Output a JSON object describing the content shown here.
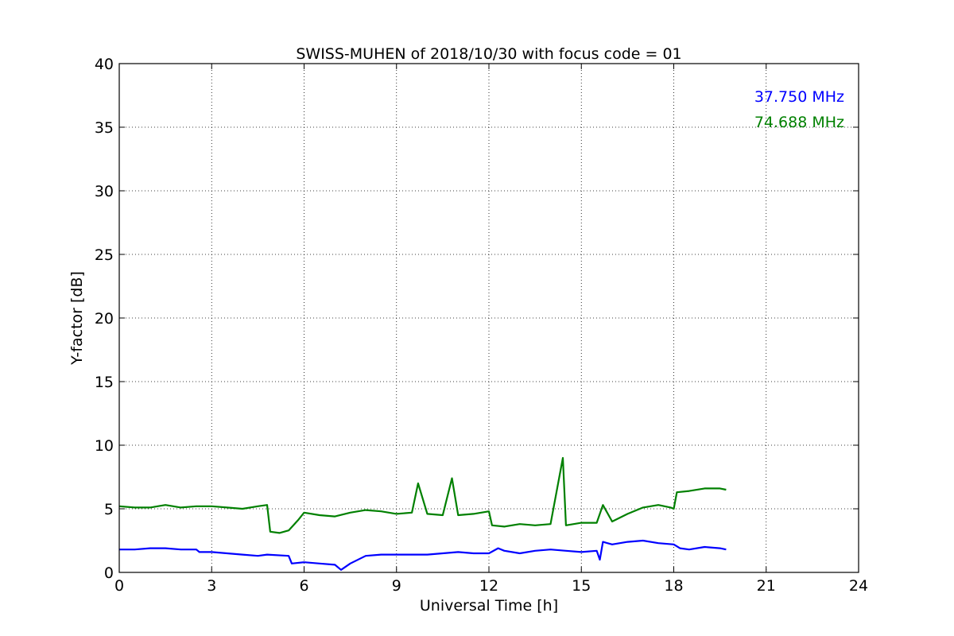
{
  "chart_data": {
    "type": "line",
    "title": "SWISS-MUHEN of 2018/10/30 with focus code = 01",
    "xlabel": "Universal Time [h]",
    "ylabel": "Y-factor [dB]",
    "xlim": [
      0,
      24
    ],
    "ylim": [
      0,
      40
    ],
    "xticks": [
      0,
      3,
      6,
      9,
      12,
      15,
      18,
      21,
      24
    ],
    "xtick_labels": [
      "0",
      "3",
      "6",
      "9",
      "12",
      "15",
      "18",
      "21",
      "24"
    ],
    "yticks": [
      0,
      5,
      10,
      15,
      20,
      25,
      30,
      35,
      40
    ],
    "ytick_labels": [
      "0",
      "5",
      "10",
      "15",
      "20",
      "25",
      "30",
      "35",
      "40"
    ],
    "grid": true,
    "legend_position": "top-right",
    "series": [
      {
        "name": "37.750 MHz",
        "color": "#0000ff",
        "x": [
          0,
          0.5,
          1,
          1.5,
          2,
          2.5,
          2.6,
          3,
          3.5,
          4,
          4.5,
          4.8,
          5.5,
          5.6,
          6,
          6.5,
          7,
          7.2,
          7.5,
          8,
          8.5,
          9,
          9.5,
          10,
          10.5,
          11,
          11.5,
          12,
          12.3,
          12.5,
          13,
          13.5,
          14,
          14.5,
          15,
          15.5,
          15.6,
          15.7,
          16,
          16.5,
          17,
          17.5,
          18,
          18.2,
          18.5,
          19,
          19.5,
          19.7
        ],
        "values": [
          1.8,
          1.8,
          1.9,
          1.9,
          1.8,
          1.8,
          1.6,
          1.6,
          1.5,
          1.4,
          1.3,
          1.4,
          1.3,
          0.7,
          0.8,
          0.7,
          0.6,
          0.2,
          0.7,
          1.3,
          1.4,
          1.4,
          1.4,
          1.4,
          1.5,
          1.6,
          1.5,
          1.5,
          1.9,
          1.7,
          1.5,
          1.7,
          1.8,
          1.7,
          1.6,
          1.7,
          1.0,
          2.4,
          2.2,
          2.4,
          2.5,
          2.3,
          2.2,
          1.9,
          1.8,
          2.0,
          1.9,
          1.8
        ]
      },
      {
        "name": "74.688 MHz",
        "color": "#008000",
        "x": [
          0,
          0.5,
          1,
          1.5,
          2,
          2.5,
          3,
          3.5,
          4,
          4.5,
          4.8,
          4.9,
          5.2,
          5.5,
          5.8,
          6,
          6.5,
          7,
          7.5,
          8,
          8.5,
          9,
          9.5,
          9.7,
          10,
          10.5,
          10.8,
          11,
          11.5,
          12,
          12.1,
          12.5,
          13,
          13.5,
          14,
          14.4,
          14.5,
          15,
          15.5,
          15.7,
          16,
          16.5,
          17,
          17.5,
          17.9,
          18,
          18.1,
          18.5,
          19,
          19.5,
          19.7
        ],
        "values": [
          5.2,
          5.1,
          5.1,
          5.3,
          5.1,
          5.2,
          5.2,
          5.1,
          5.0,
          5.2,
          5.3,
          3.2,
          3.1,
          3.3,
          4.1,
          4.7,
          4.5,
          4.4,
          4.7,
          4.9,
          4.8,
          4.6,
          4.7,
          7.0,
          4.6,
          4.5,
          7.4,
          4.5,
          4.6,
          4.8,
          3.7,
          3.6,
          3.8,
          3.7,
          3.8,
          9.0,
          3.7,
          3.9,
          3.9,
          5.3,
          4.0,
          4.6,
          5.1,
          5.3,
          5.1,
          5.0,
          6.3,
          6.4,
          6.6,
          6.6,
          6.5
        ]
      }
    ]
  }
}
